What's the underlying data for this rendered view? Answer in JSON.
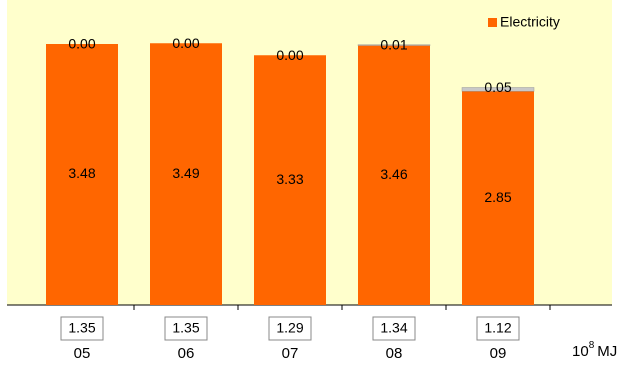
{
  "chart_data": {
    "type": "bar",
    "stacked": true,
    "categories": [
      "05",
      "06",
      "07",
      "08",
      "09"
    ],
    "series": [
      {
        "name": "Electricity",
        "color": "#ff6600",
        "values": [
          3.48,
          3.49,
          3.33,
          3.46,
          2.85
        ]
      },
      {
        "color": "#c8c8c8",
        "values": [
          0,
          0,
          0,
          0.01,
          0.05
        ],
        "value_labels": [
          "0.00",
          "0.00",
          "0.00",
          "0.01",
          "0.05"
        ]
      }
    ],
    "ylim": [
      0,
      4
    ],
    "box_values": [
      1.35,
      1.35,
      1.29,
      1.34,
      1.12
    ],
    "unit_base": "10",
    "unit_exponent": "8",
    "unit_text": "MJ",
    "background": "#ffffcc",
    "legend": "top-right"
  }
}
